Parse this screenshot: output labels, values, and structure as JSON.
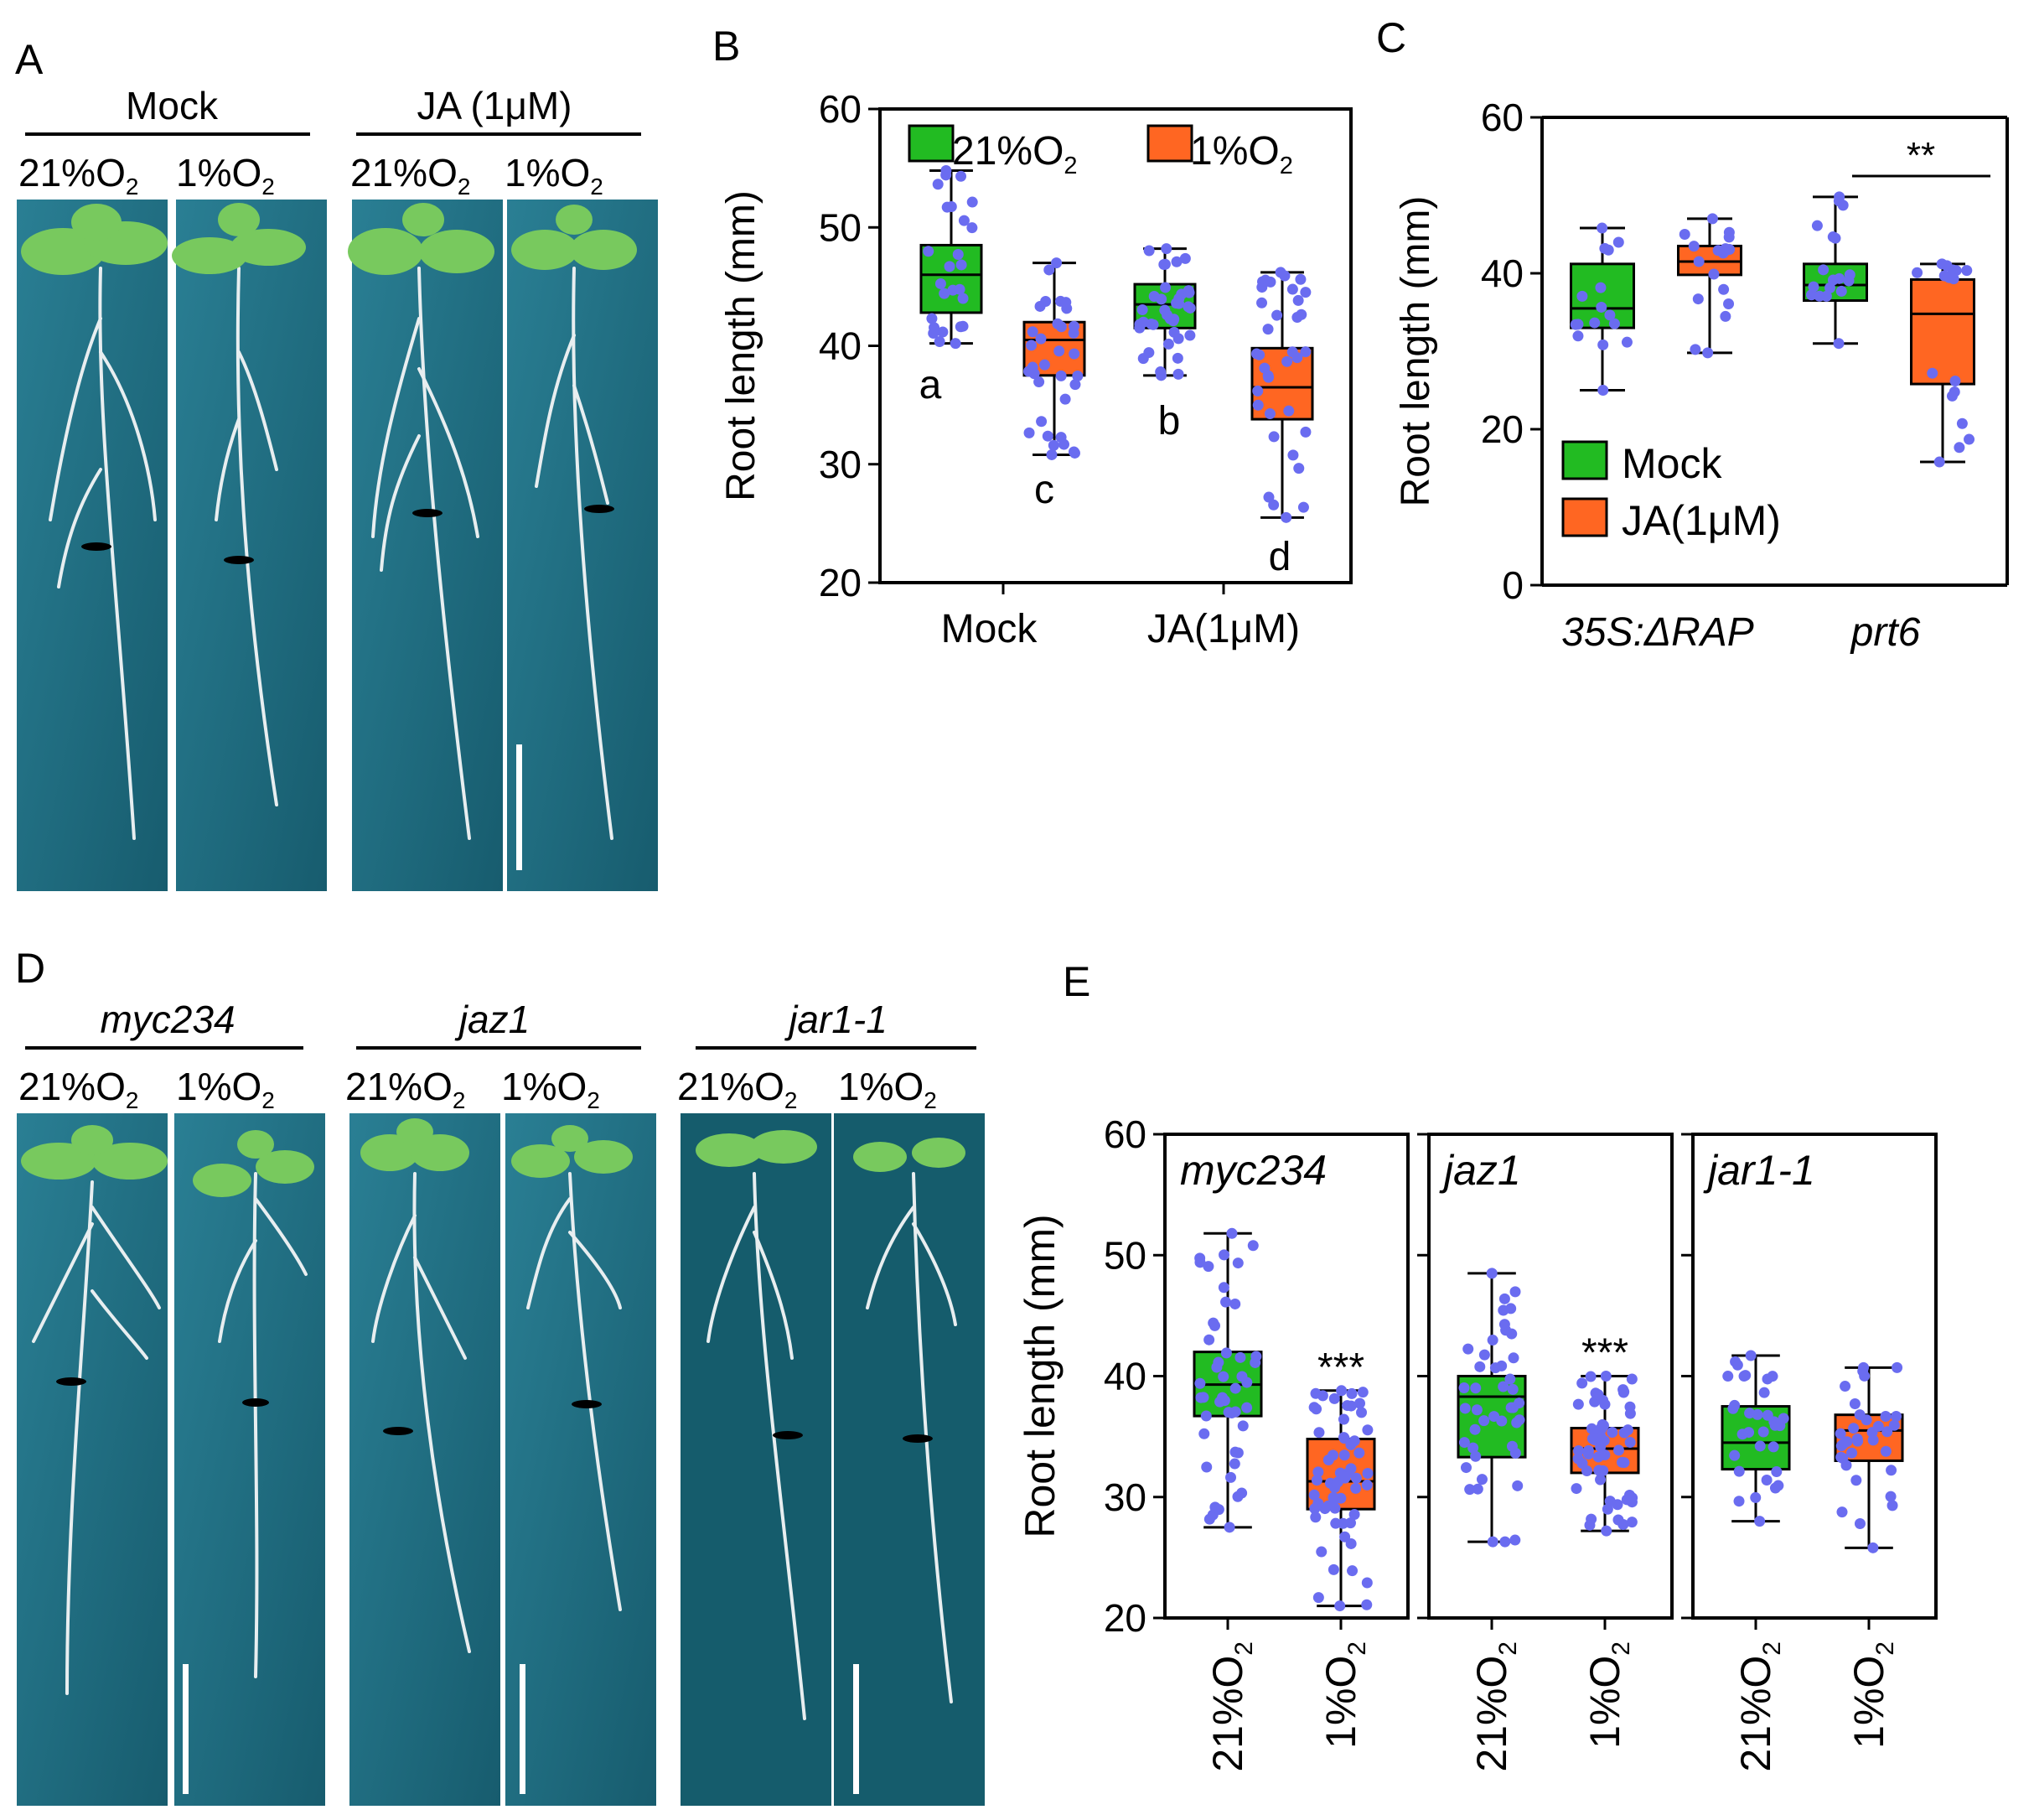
{
  "panels": {
    "A": {
      "label": "A",
      "groups": [
        {
          "title": "Mock",
          "italic": false,
          "left": "21%O",
          "right": "1%O",
          "sub": "2"
        },
        {
          "title": "JA (1μM)",
          "italic": false,
          "left": "21%O",
          "right": "1%O",
          "sub": "2"
        }
      ]
    },
    "D": {
      "label": "D",
      "groups": [
        {
          "title": "myc234",
          "italic": true,
          "left": "21%O",
          "right": "1%O",
          "sub": "2"
        },
        {
          "title": "jaz1",
          "italic": true,
          "left": "21%O",
          "right": "1%O",
          "sub": "2"
        },
        {
          "title": "jar1-1",
          "italic": true,
          "left": "21%O",
          "right": "1%O",
          "sub": "2"
        }
      ]
    },
    "B": {
      "label": "B"
    },
    "C": {
      "label": "C"
    },
    "E": {
      "label": "E"
    }
  },
  "colors": {
    "green": "#22bb22",
    "orange": "#ff6622",
    "dot": "#6a6cf0",
    "plate": "#1f6f84",
    "plate_dark": "#155c6c"
  },
  "chart_data": [
    {
      "panel": "B",
      "type": "box",
      "ylabel": "Root length (mm)",
      "ylim": [
        20,
        60
      ],
      "yticks": [
        20,
        30,
        40,
        50,
        60
      ],
      "categories": [
        "Mock",
        "JA(1μM)"
      ],
      "legend": [
        {
          "label": "21%O",
          "sub": "2",
          "color": "#22bb22"
        },
        {
          "label": "1%O",
          "sub": "2",
          "color": "#ff6622"
        }
      ],
      "boxes": [
        {
          "category": "Mock",
          "condition": "21%O2",
          "min": 40.2,
          "q1": 42.8,
          "median": 46.0,
          "q3": 48.5,
          "max": 54.8,
          "letter": "a",
          "n": 26
        },
        {
          "category": "Mock",
          "condition": "1%O2",
          "min": 30.8,
          "q1": 37.5,
          "median": 40.5,
          "q3": 42.0,
          "max": 47.0,
          "letter": "c",
          "n": 34
        },
        {
          "category": "JA(1μM)",
          "condition": "21%O2",
          "min": 37.5,
          "q1": 41.5,
          "median": 43.5,
          "q3": 45.2,
          "max": 48.2,
          "letter": "b",
          "n": 38
        },
        {
          "category": "JA(1μM)",
          "condition": "1%O2",
          "min": 25.5,
          "q1": 33.8,
          "median": 36.5,
          "q3": 39.8,
          "max": 46.2,
          "letter": "d",
          "n": 36
        }
      ]
    },
    {
      "panel": "C",
      "type": "box",
      "ylabel": "Root length (mm)",
      "ylim": [
        0,
        60
      ],
      "yticks": [
        0,
        20,
        40,
        60
      ],
      "categories": [
        "35S:ΔRAP",
        "prt6"
      ],
      "legend": [
        {
          "label": "Mock",
          "color": "#22bb22"
        },
        {
          "label": "JA(1μM)",
          "color": "#ff6622"
        }
      ],
      "significance": "**",
      "boxes": [
        {
          "category": "35S:ΔRAP",
          "condition": "Mock",
          "min": 25.0,
          "q1": 33.0,
          "median": 35.5,
          "q3": 41.2,
          "max": 45.8,
          "n": 16
        },
        {
          "category": "35S:ΔRAP",
          "condition": "JA(1μM)",
          "min": 29.8,
          "q1": 39.8,
          "median": 41.5,
          "q3": 43.5,
          "max": 47.0,
          "n": 18
        },
        {
          "category": "prt6",
          "condition": "Mock",
          "min": 31.0,
          "q1": 36.5,
          "median": 38.5,
          "q3": 41.2,
          "max": 49.8,
          "n": 18
        },
        {
          "category": "prt6",
          "condition": "JA(1μM)",
          "min": 15.8,
          "q1": 25.8,
          "median": 34.8,
          "q3": 39.2,
          "max": 41.2,
          "n": 18
        }
      ]
    },
    {
      "panel": "E",
      "type": "box",
      "ylabel": "Root length (mm)",
      "ylim": [
        20,
        60
      ],
      "yticks": [
        20,
        30,
        40,
        50,
        60
      ],
      "xtick_labels": [
        "21%O",
        "1%O"
      ],
      "xtick_sub": "2",
      "subpanels": [
        {
          "title": "myc234",
          "significance": "***",
          "boxes": [
            {
              "condition": "21%O2",
              "min": 27.5,
              "q1": 36.7,
              "median": 39.3,
              "q3": 42.0,
              "max": 51.8,
              "n": 48
            },
            {
              "condition": "1%O2",
              "min": 21.0,
              "q1": 29.0,
              "median": 31.3,
              "q3": 34.8,
              "max": 38.8,
              "n": 60
            }
          ]
        },
        {
          "title": "jaz1",
          "significance": "***",
          "boxes": [
            {
              "condition": "21%O2",
              "min": 26.3,
              "q1": 33.3,
              "median": 38.3,
              "q3": 40.0,
              "max": 48.5,
              "n": 44
            },
            {
              "condition": "1%O2",
              "min": 27.2,
              "q1": 32.0,
              "median": 34.0,
              "q3": 35.7,
              "max": 40.0,
              "n": 58
            }
          ]
        },
        {
          "title": "jar1-1",
          "significance": "",
          "boxes": [
            {
              "condition": "21%O2",
              "min": 28.0,
              "q1": 32.3,
              "median": 34.5,
              "q3": 37.5,
              "max": 41.7,
              "n": 32
            },
            {
              "condition": "1%O2",
              "min": 25.8,
              "q1": 33.0,
              "median": 35.5,
              "q3": 36.8,
              "max": 40.7,
              "n": 34
            }
          ]
        }
      ]
    }
  ]
}
